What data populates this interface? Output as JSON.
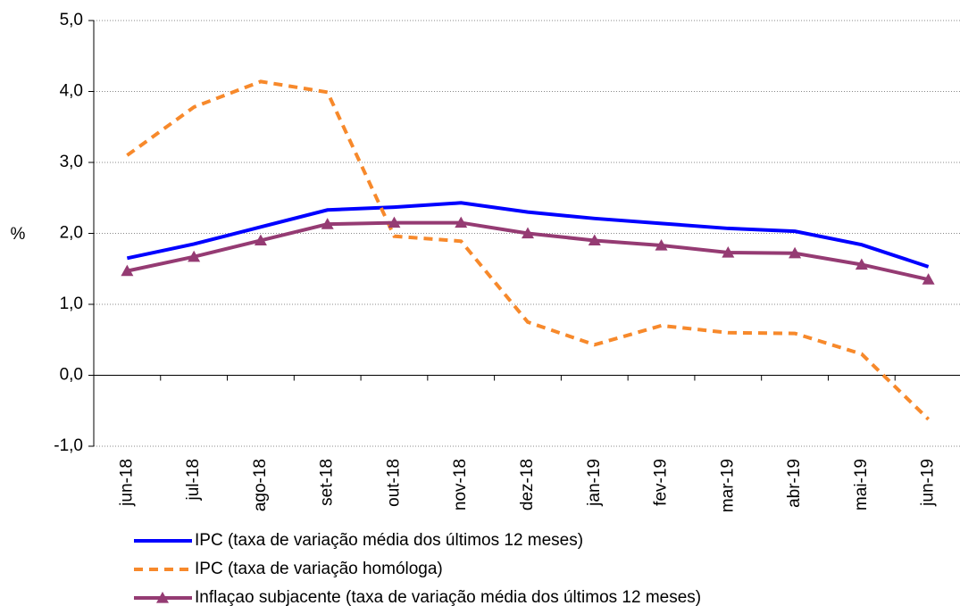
{
  "chart_data": {
    "type": "line",
    "y_label": "%",
    "categories": [
      "jun-18",
      "jul-18",
      "ago-18",
      "set-18",
      "out-18",
      "nov-18",
      "dez-18",
      "jan-19",
      "fev-19",
      "mar-19",
      "abr-19",
      "mai-19",
      "jun-19"
    ],
    "series": [
      {
        "name": "IPC (taxa de variação média dos últimos 12 meses)",
        "color": "#0000ff",
        "line_style": "solid",
        "marker": "none",
        "values": [
          1.65,
          1.85,
          2.09,
          2.33,
          2.37,
          2.43,
          2.3,
          2.21,
          2.14,
          2.07,
          2.03,
          1.84,
          1.53
        ]
      },
      {
        "name": "IPC (taxa de variação homóloga)",
        "color": "#f7892b",
        "line_style": "dashed",
        "marker": "none",
        "values": [
          3.1,
          3.78,
          4.14,
          3.99,
          1.96,
          1.89,
          0.75,
          0.43,
          0.7,
          0.6,
          0.59,
          0.3,
          -0.62
        ]
      },
      {
        "name": "Inflaçao subjacente (taxa de variação média dos últimos 12 meses)",
        "color": "#953b73",
        "line_style": "solid",
        "marker": "triangle",
        "values": [
          1.47,
          1.67,
          1.9,
          2.13,
          2.15,
          2.15,
          2.0,
          1.9,
          1.83,
          1.73,
          1.72,
          1.56,
          1.35
        ]
      }
    ],
    "ylim": [
      -1,
      5
    ],
    "yticks": [
      {
        "value": -1,
        "label": "-1,0"
      },
      {
        "value": 0,
        "label": "0,0"
      },
      {
        "value": 1,
        "label": "1,0"
      },
      {
        "value": 2,
        "label": "2,0"
      },
      {
        "value": 3,
        "label": "3,0"
      },
      {
        "value": 4,
        "label": "4,0"
      },
      {
        "value": 5,
        "label": "5,0"
      }
    ],
    "grid": true,
    "legend": "bottom"
  }
}
